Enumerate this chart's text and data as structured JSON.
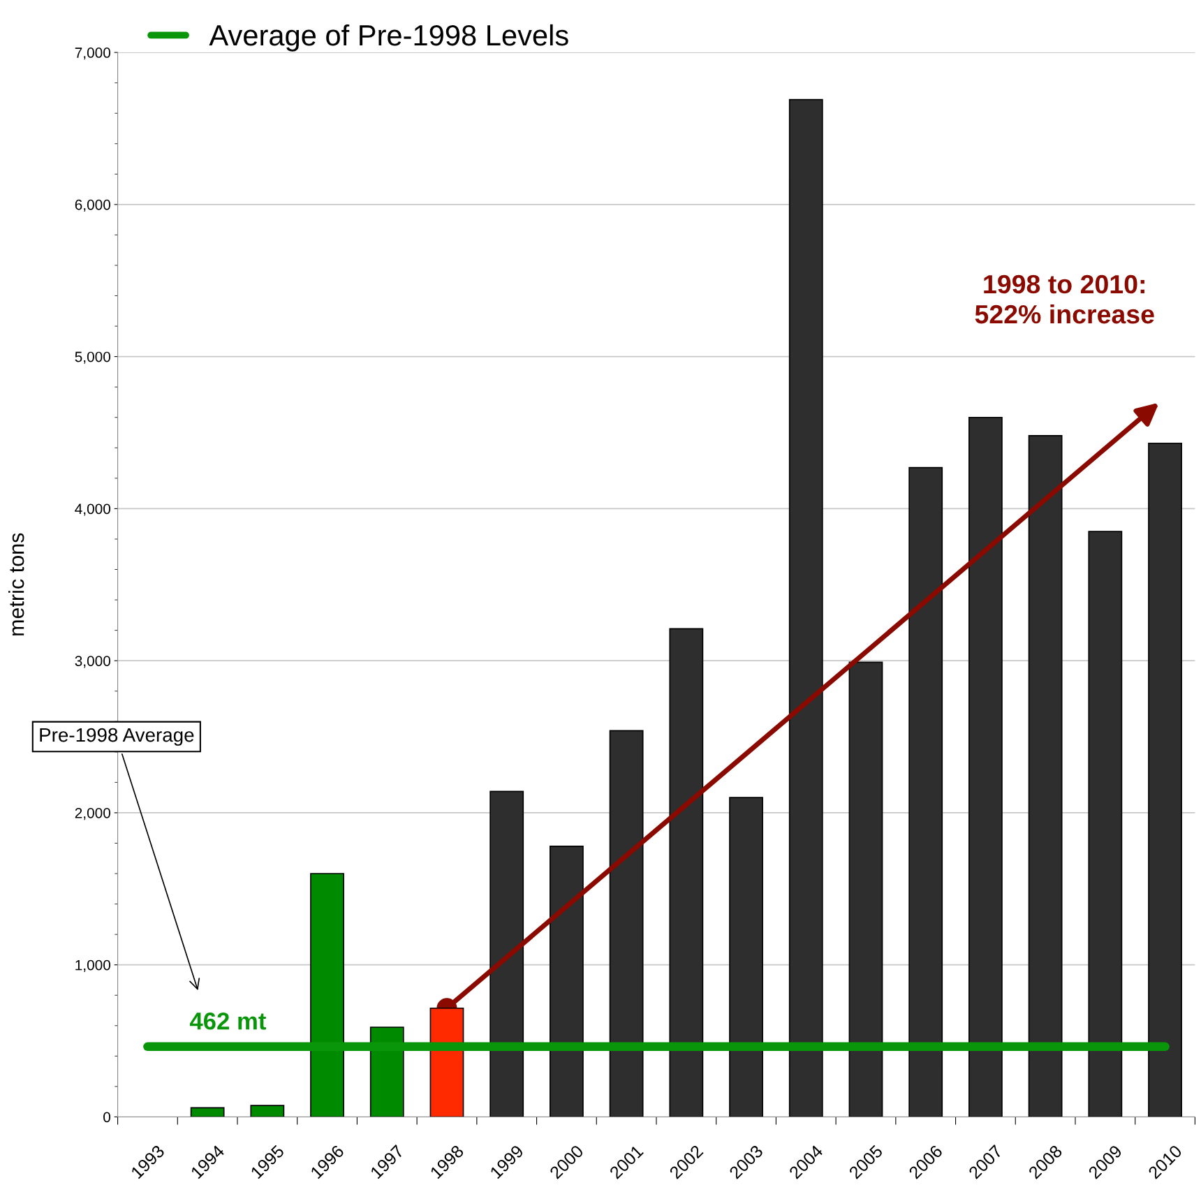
{
  "chart_data": {
    "type": "bar",
    "ylabel": "metric tons",
    "categories": [
      "1993",
      "1994",
      "1995",
      "1996",
      "1997",
      "1998",
      "1999",
      "2000",
      "2001",
      "2002",
      "2003",
      "2004",
      "2005",
      "2006",
      "2007",
      "2008",
      "2009",
      "2010"
    ],
    "series": [
      {
        "colors": [
          "#008a00",
          "#008a00",
          "#008a00",
          "#008a00",
          "#008a00",
          "#ff2a00",
          "#2e2e2e",
          "#2e2e2e",
          "#2e2e2e",
          "#2e2e2e",
          "#2e2e2e",
          "#2e2e2e",
          "#2e2e2e",
          "#2e2e2e",
          "#2e2e2e",
          "#2e2e2e",
          "#2e2e2e",
          "#2e2e2e"
        ],
        "values": [
          null,
          60,
          75,
          1600,
          590,
          715,
          2140,
          1780,
          2540,
          3210,
          2100,
          6690,
          2990,
          4270,
          4600,
          4480,
          3850,
          4430
        ]
      },
      {
        "type": "line",
        "name": "Average of Pre-1998 Levels",
        "color": "#0a960a",
        "values": [
          462,
          462,
          462,
          462,
          462,
          462,
          462,
          462,
          462,
          462,
          462,
          462,
          462,
          462,
          462,
          462,
          462,
          462
        ]
      }
    ],
    "ylim": [
      0,
      7000
    ],
    "yticks": [
      {
        "value": 0,
        "label": "0"
      },
      {
        "value": 1000,
        "label": "1,000"
      },
      {
        "value": 2000,
        "label": "2,000"
      },
      {
        "value": 3000,
        "label": "3,000"
      },
      {
        "value": 4000,
        "label": "4,000"
      },
      {
        "value": 5000,
        "label": "5,000"
      },
      {
        "value": 6000,
        "label": "6,000"
      },
      {
        "value": 7000,
        "label": "7,000"
      }
    ],
    "grid": "y",
    "legend": "top left",
    "annotations": [
      {
        "text": "462 mt",
        "x": "1994",
        "y": 462
      },
      "Pre-1998 Average",
      "1998 to 2010:\n522% increase"
    ]
  }
}
